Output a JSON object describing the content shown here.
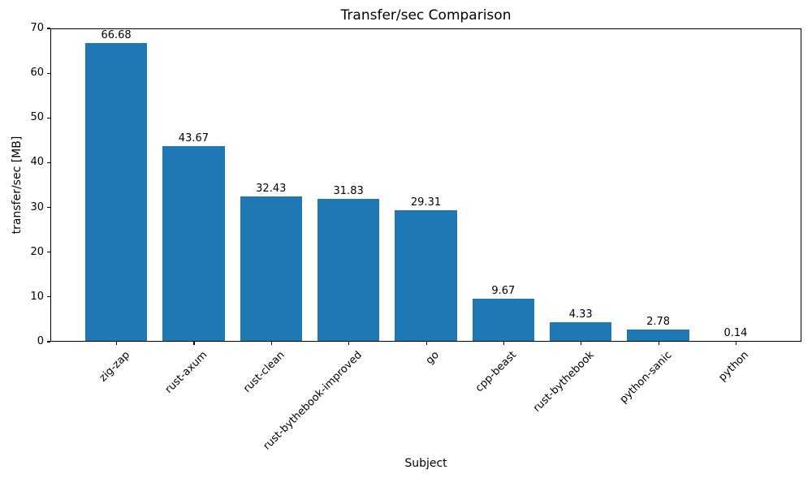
{
  "chart_data": {
    "type": "bar",
    "title": "Transfer/sec Comparison",
    "xlabel": "Subject",
    "ylabel": "transfer/sec [MB]",
    "categories": [
      "zig-zap",
      "rust-axum",
      "rust-clean",
      "rust-bythebook-improved",
      "go",
      "cpp-beast",
      "rust-bythebook",
      "python-sanic",
      "python"
    ],
    "values": [
      66.68,
      43.67,
      32.43,
      31.83,
      29.31,
      9.67,
      4.33,
      2.78,
      0.14
    ],
    "value_labels": [
      "66.68",
      "43.67",
      "32.43",
      "31.83",
      "29.31",
      "9.67",
      "4.33",
      "2.78",
      "0.14"
    ],
    "ylim": [
      0,
      70
    ],
    "yticks": [
      0,
      10,
      20,
      30,
      40,
      50,
      60,
      70
    ],
    "bar_color": "#1f77b4",
    "text_color": "#000000",
    "grid": false,
    "legend_position": "none"
  }
}
